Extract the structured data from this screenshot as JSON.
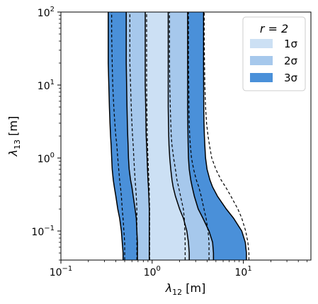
{
  "chart_data": {
    "type": "area",
    "xlabel": "λ",
    "xlabel_sub": "12",
    "xlabel_unit": " [m]",
    "ylabel": "λ",
    "ylabel_sub": "13",
    "ylabel_unit": " [m]",
    "x_scale": "log",
    "y_scale": "log",
    "xlim": [
      0.1,
      55
    ],
    "ylim": [
      0.04,
      100
    ],
    "x_ticks": [
      {
        "value": 0.1,
        "base": "10",
        "exp": "−1"
      },
      {
        "value": 1,
        "base": "10",
        "exp": "0"
      },
      {
        "value": 10,
        "base": "10",
        "exp": "1"
      }
    ],
    "y_ticks": [
      {
        "value": 0.1,
        "base": "10",
        "exp": "−1"
      },
      {
        "value": 1,
        "base": "10",
        "exp": "0"
      },
      {
        "value": 10,
        "base": "10",
        "exp": "1"
      },
      {
        "value": 100,
        "base": "10",
        "exp": "2"
      }
    ],
    "legend": {
      "title": "r = 2",
      "position": "upper right",
      "entries": [
        {
          "label": "1σ",
          "color": "#cce0f4"
        },
        {
          "label": "2σ",
          "color": "#a6c8ec"
        },
        {
          "label": "3σ",
          "color": "#4a90d9"
        }
      ]
    },
    "band_colors": {
      "sigma1": "#cce0f4",
      "sigma2": "#a6c8ec",
      "sigma3": "#4a90d9"
    },
    "y_samples": [
      0.04,
      0.05,
      0.07,
      0.1,
      0.15,
      0.2,
      0.3,
      0.4,
      0.5,
      0.7,
      1,
      1.5,
      2,
      3,
      5,
      10,
      20,
      50,
      100
    ],
    "solid_boundaries": {
      "sigma3_left": [
        0.48,
        0.48,
        0.47,
        0.46,
        0.44,
        0.42,
        0.4,
        0.385,
        0.375,
        0.365,
        0.36,
        0.355,
        0.35,
        0.345,
        0.34,
        0.335,
        0.33,
        0.33,
        0.33
      ],
      "sigma2_left": [
        0.69,
        0.69,
        0.69,
        0.68,
        0.67,
        0.65,
        0.62,
        0.6,
        0.58,
        0.56,
        0.55,
        0.545,
        0.54,
        0.535,
        0.53,
        0.525,
        0.52,
        0.52,
        0.52
      ],
      "sigma1_left": [
        0.93,
        0.93,
        0.93,
        0.93,
        0.93,
        0.93,
        0.92,
        0.91,
        0.9,
        0.89,
        0.88,
        0.87,
        0.86,
        0.855,
        0.85,
        0.84,
        0.84,
        0.84,
        0.84
      ],
      "sigma1_right": [
        2.55,
        2.55,
        2.5,
        2.4,
        2.2,
        2.0,
        1.8,
        1.7,
        1.65,
        1.6,
        1.56,
        1.53,
        1.52,
        1.51,
        1.5,
        1.5,
        1.5,
        1.5,
        1.5
      ],
      "sigma2_right": [
        4.7,
        4.7,
        4.6,
        4.2,
        3.6,
        3.2,
        2.9,
        2.75,
        2.65,
        2.55,
        2.5,
        2.48,
        2.47,
        2.46,
        2.45,
        2.45,
        2.45,
        2.45,
        2.45
      ],
      "sigma3_right": [
        10.8,
        10.8,
        10.5,
        9.6,
        7.8,
        6.5,
        5.2,
        4.6,
        4.3,
        4.0,
        3.85,
        3.78,
        3.74,
        3.7,
        3.68,
        3.67,
        3.66,
        3.66,
        3.66
      ]
    },
    "dashed_boundaries": [
      [
        0.5,
        0.5,
        0.5,
        0.49,
        0.48,
        0.47,
        0.46,
        0.45,
        0.44,
        0.43,
        0.42,
        0.41,
        0.4,
        0.39,
        0.38,
        0.37,
        0.365,
        0.36,
        0.36
      ],
      [
        0.68,
        0.68,
        0.68,
        0.68,
        0.68,
        0.68,
        0.67,
        0.66,
        0.65,
        0.64,
        0.63,
        0.62,
        0.61,
        0.6,
        0.59,
        0.58,
        0.57,
        0.57,
        0.57
      ],
      [
        0.94,
        0.94,
        0.94,
        0.94,
        0.94,
        0.94,
        0.93,
        0.93,
        0.92,
        0.91,
        0.9,
        0.89,
        0.885,
        0.88,
        0.875,
        0.87,
        0.87,
        0.87,
        0.87
      ],
      [
        2.3,
        2.3,
        2.3,
        2.28,
        2.25,
        2.2,
        2.05,
        1.95,
        1.87,
        1.8,
        1.72,
        1.65,
        1.62,
        1.6,
        1.58,
        1.56,
        1.55,
        1.55,
        1.55
      ],
      [
        4.2,
        4.2,
        4.2,
        4.1,
        3.9,
        3.7,
        3.45,
        3.25,
        3.05,
        2.85,
        2.7,
        2.62,
        2.58,
        2.55,
        2.53,
        2.52,
        2.5,
        2.5,
        2.5
      ],
      [
        11.5,
        11.5,
        11.2,
        10.6,
        9.6,
        8.7,
        7.3,
        6.4,
        5.7,
        5.0,
        4.5,
        4.25,
        4.1,
        3.95,
        3.85,
        3.78,
        3.75,
        3.72,
        3.72
      ]
    ]
  }
}
